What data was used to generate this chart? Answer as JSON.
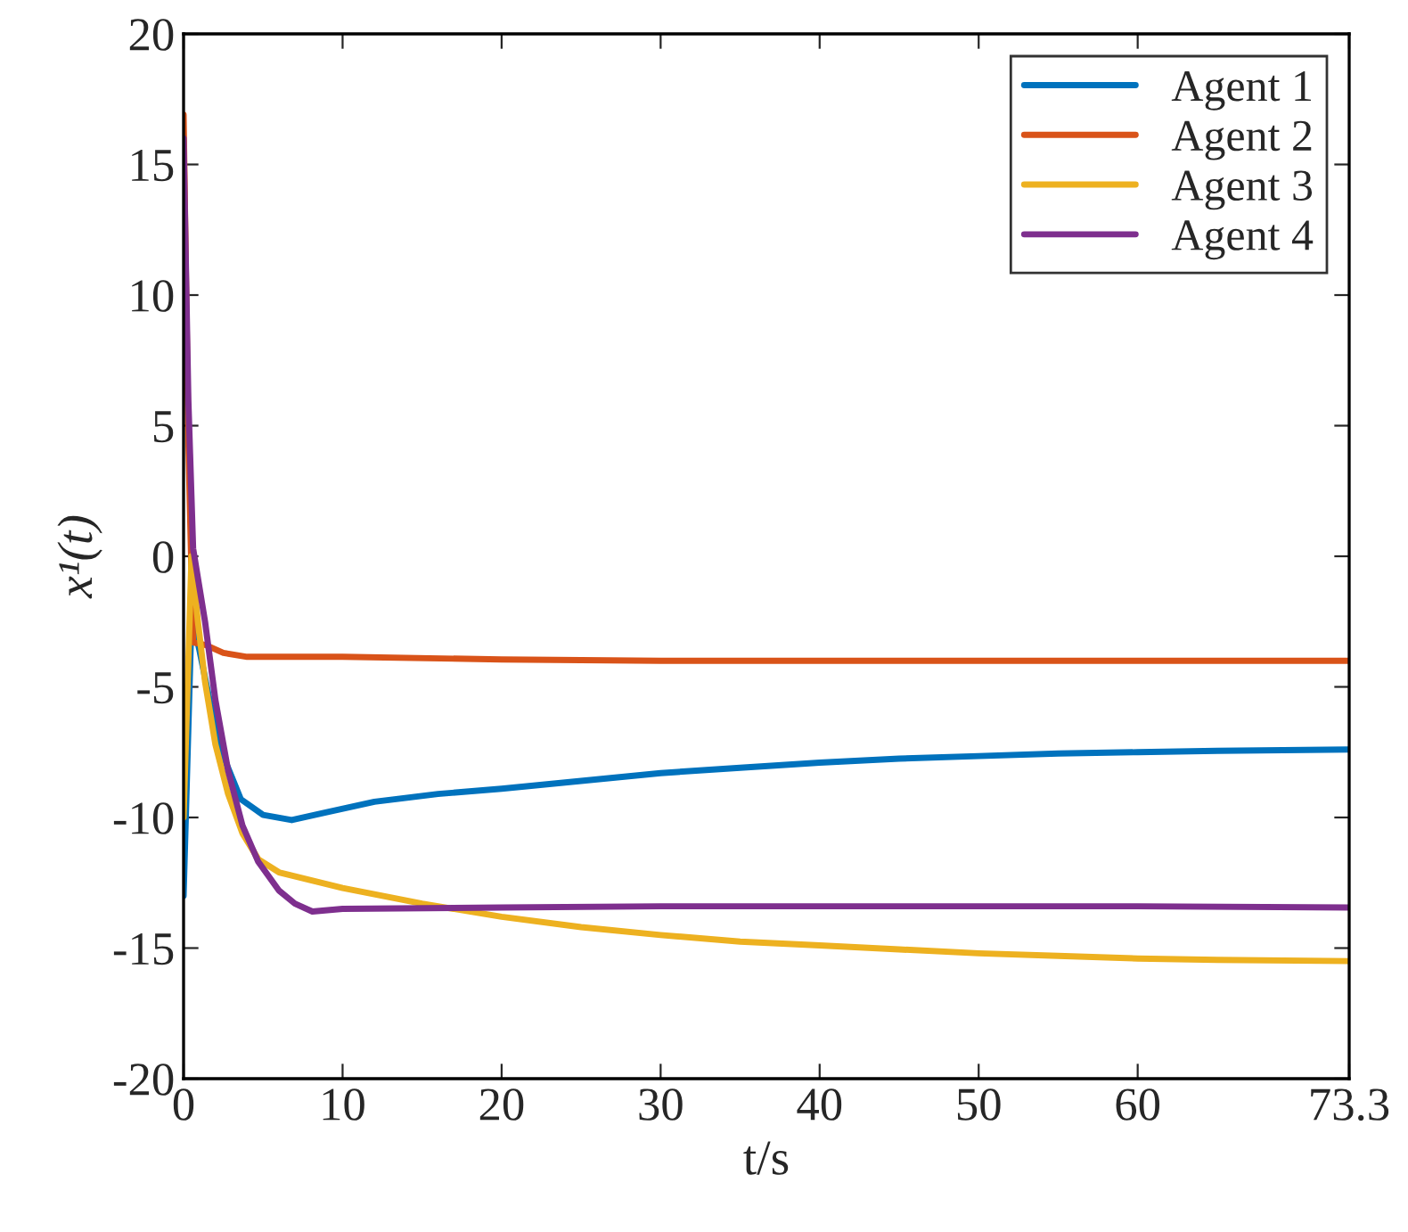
{
  "chart_data": {
    "type": "line",
    "xlabel": "t/s",
    "ylabel": "x¹(t)",
    "legend": "top right",
    "grid": false,
    "xlim": [
      0,
      73.3
    ],
    "xticks": [
      0,
      10,
      20,
      30,
      40,
      50,
      60,
      73.3
    ],
    "ylim": [
      -20,
      20
    ],
    "yticks": [
      -20,
      -15,
      -10,
      -5,
      0,
      5,
      10,
      15,
      20
    ],
    "series": [
      {
        "name": "Agent 1",
        "color": "#0072bd",
        "x": [
          0,
          0.5,
          1.0,
          1.7,
          2.6,
          3.6,
          5,
          6.8,
          9,
          12,
          16,
          20,
          25,
          30,
          35,
          40,
          45,
          50,
          55,
          60,
          65,
          73.3
        ],
        "values": [
          -13.0,
          -2.3,
          -3.6,
          -5.7,
          -7.8,
          -9.3,
          -9.9,
          -10.1,
          -9.8,
          -9.4,
          -9.1,
          -8.9,
          -8.6,
          -8.3,
          -8.1,
          -7.9,
          -7.75,
          -7.65,
          -7.55,
          -7.5,
          -7.45,
          -7.4
        ]
      },
      {
        "name": "Agent 2",
        "color": "#d95319",
        "x": [
          0,
          0.3,
          0.6,
          1.4,
          2.5,
          4,
          6,
          10,
          20,
          30,
          40,
          50,
          60,
          73.3
        ],
        "values": [
          16.9,
          4.4,
          -3.3,
          -3.4,
          -3.7,
          -3.85,
          -3.85,
          -3.85,
          -3.95,
          -4.0,
          -4.0,
          -4.0,
          -4.0,
          -4.0
        ]
      },
      {
        "name": "Agent 3",
        "color": "#edb120",
        "x": [
          0,
          0.5,
          0.9,
          1.35,
          2.0,
          2.8,
          3.7,
          4.7,
          6,
          8,
          10,
          15,
          20,
          25,
          30,
          35,
          40,
          45,
          50,
          55,
          60,
          65,
          73.3
        ],
        "values": [
          -10.0,
          0.0,
          -2.5,
          -4.8,
          -7.2,
          -9.1,
          -10.6,
          -11.6,
          -12.1,
          -12.4,
          -12.7,
          -13.3,
          -13.8,
          -14.2,
          -14.5,
          -14.75,
          -14.9,
          -15.05,
          -15.2,
          -15.3,
          -15.4,
          -15.45,
          -15.5
        ]
      },
      {
        "name": "Agent 4",
        "color": "#7e2f8e",
        "x": [
          0,
          0.3,
          0.6,
          1.0,
          1.35,
          2.0,
          2.8,
          3.7,
          4.7,
          6,
          7,
          8.1,
          10,
          20,
          30,
          40,
          50,
          60,
          73.3
        ],
        "values": [
          16.0,
          6.0,
          0.3,
          -1.2,
          -2.5,
          -5.5,
          -8.2,
          -10.3,
          -11.7,
          -12.8,
          -13.3,
          -13.6,
          -13.5,
          -13.45,
          -13.4,
          -13.4,
          -13.4,
          -13.4,
          -13.45
        ]
      }
    ]
  }
}
